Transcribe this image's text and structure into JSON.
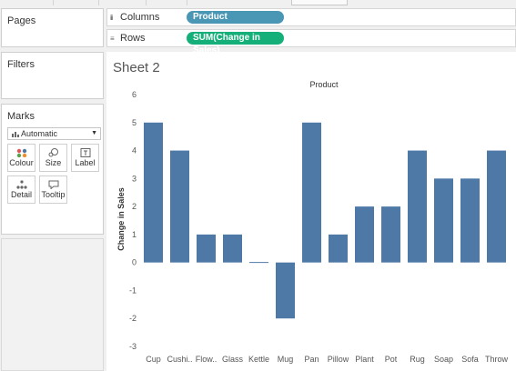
{
  "panels": {
    "pages_label": "Pages",
    "filters_label": "Filters",
    "marks_label": "Marks",
    "mark_type": "Automatic",
    "mark_buttons": [
      {
        "label": "Colour",
        "icon": "colour-icon"
      },
      {
        "label": "Size",
        "icon": "size-icon"
      },
      {
        "label": "Label",
        "icon": "label-icon"
      },
      {
        "label": "Detail",
        "icon": "detail-icon"
      },
      {
        "label": "Tooltip",
        "icon": "tooltip-icon"
      }
    ]
  },
  "shelves": {
    "columns_label": "Columns",
    "columns_pill": "Product",
    "rows_label": "Rows",
    "rows_pill": "SUM(Change in Sales)"
  },
  "colors": {
    "columns_pill": "#4a96b5",
    "rows_pill": "#15b07a",
    "bar": "#4e79a7"
  },
  "sheet": {
    "title": "Sheet 2"
  },
  "chart_data": {
    "type": "bar",
    "title": "Product",
    "xlabel": "",
    "ylabel": "Change in Sales",
    "categories": [
      "Cup",
      "Cushi..",
      "Flow..",
      "Glass",
      "Kettle",
      "Mug",
      "Pan",
      "Pillow",
      "Plant",
      "Pot",
      "Rug",
      "Soap",
      "Sofa",
      "Throw"
    ],
    "values": [
      5,
      4,
      1,
      1,
      0,
      -2,
      5,
      1,
      2,
      2,
      4,
      3,
      3,
      4
    ],
    "ylim": [
      -3,
      6
    ],
    "yticks": [
      6,
      5,
      4,
      3,
      2,
      1,
      0,
      -1,
      -2,
      -3
    ],
    "grid": false
  }
}
